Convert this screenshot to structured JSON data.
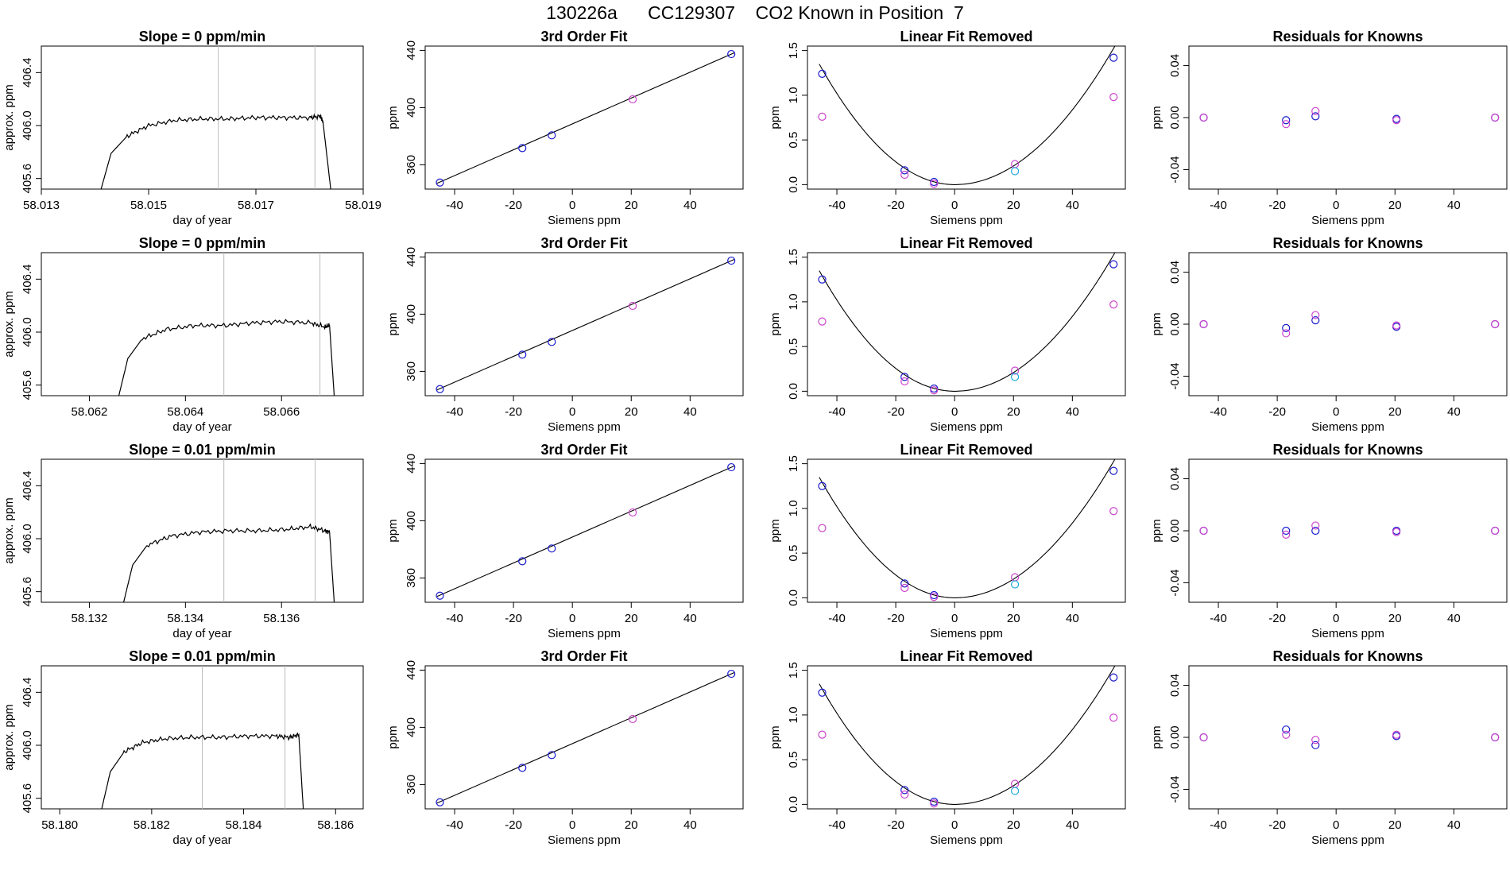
{
  "page_title": "130226a      CC129307    CO2 Known in Position  7",
  "chart_data": [
    {
      "row": 1,
      "type": "line",
      "title": "Slope =  0  ppm/min",
      "xlabel": "day of year",
      "ylabel": "approx. ppm",
      "xlim": [
        58.013,
        58.019
      ],
      "ylim": [
        405.52,
        406.6
      ],
      "xticks": [
        "58.013",
        "58.015",
        "58.017",
        "58.019"
      ],
      "yticks": [
        "405.6",
        "406.0",
        "406.4"
      ],
      "vlines": [
        58.0163,
        58.0181
      ],
      "series": [
        {
          "x": [
            58.0141,
            58.0143,
            58.0146,
            58.015,
            58.0155,
            58.016,
            58.0165,
            58.017,
            58.0175,
            58.018,
            58.0182,
            58.01825,
            58.0184
          ],
          "y": [
            405.5,
            405.79,
            405.92,
            406.0,
            406.04,
            406.05,
            406.05,
            406.06,
            406.06,
            406.06,
            406.07,
            406.03,
            405.5
          ]
        }
      ]
    },
    {
      "row": 1,
      "type": "scatter",
      "title": "3rd Order Fit",
      "xlabel": "Siemens ppm",
      "ylabel": "ppm",
      "xlim": [
        -50,
        58
      ],
      "ylim": [
        343,
        443
      ],
      "xticks": [
        "-40",
        "-20",
        "0",
        "20",
        "40"
      ],
      "yticks": [
        "360",
        "400",
        "440"
      ],
      "points": [
        {
          "x": -45,
          "y": 347.6
        },
        {
          "x": -17,
          "y": 371.7
        },
        {
          "x": -7,
          "y": 380.6
        },
        {
          "x": 20.5,
          "y": 405.8
        },
        {
          "x": 54,
          "y": 437.4
        }
      ],
      "fit_curve": {
        "x": [
          -46,
          55
        ],
        "y": [
          347,
          438.3
        ]
      }
    },
    {
      "row": 1,
      "type": "scatter",
      "title": "Linear Fit Removed",
      "xlabel": "Siemens ppm",
      "ylabel": "ppm",
      "xlim": [
        -50,
        58
      ],
      "ylim": [
        -0.05,
        1.55
      ],
      "xticks": [
        "-40",
        "-20",
        "0",
        "20",
        "40"
      ],
      "yticks": [
        "0.0",
        "0.5",
        "1.0",
        "1.5"
      ],
      "series": [
        {
          "color": "#1a1acc",
          "x": [
            -45,
            -17,
            -7,
            54
          ],
          "y": [
            1.24,
            0.16,
            0.03,
            1.42
          ]
        },
        {
          "color": "#cc44cc",
          "x": [
            -45,
            -17,
            -7,
            20.5,
            54
          ],
          "y": [
            0.76,
            0.11,
            0.01,
            0.23,
            0.98
          ]
        },
        {
          "color": "#22aadd",
          "x": [
            20.5
          ],
          "y": [
            0.15
          ]
        }
      ],
      "fit_curve": {
        "x": [
          -46,
          -40,
          -30,
          -20,
          -10,
          0,
          10,
          20,
          30,
          40,
          50,
          55
        ],
        "y": [
          1.33,
          1.02,
          0.57,
          0.25,
          0.06,
          0,
          0.06,
          0.25,
          0.57,
          1.02,
          1.58,
          1.5
        ]
      }
    },
    {
      "row": 1,
      "type": "scatter",
      "title": "Residuals for Knowns",
      "xlabel": "Siemens ppm",
      "ylabel": "ppm",
      "xlim": [
        -50,
        58
      ],
      "ylim": [
        -0.055,
        0.055
      ],
      "xticks": [
        "-40",
        "-20",
        "0",
        "20",
        "40"
      ],
      "yticks": [
        "-0.04",
        "0.00",
        "0.04"
      ],
      "series": [
        {
          "color": "#1a1acc",
          "x": [
            -45,
            -17,
            -7,
            20.5,
            54
          ],
          "y": [
            0.0,
            -0.002,
            0.001,
            -0.001,
            0.0
          ]
        },
        {
          "color": "#cc44cc",
          "x": [
            -45,
            -17,
            -7,
            20.5,
            54
          ],
          "y": [
            0.0,
            -0.005,
            0.005,
            -0.002,
            0.0
          ]
        }
      ]
    },
    {
      "row": 2,
      "type": "line",
      "title": "Slope =  0  ppm/min",
      "xlabel": "day of year",
      "ylabel": "approx. ppm",
      "xlim": [
        58.061,
        58.0677
      ],
      "ylim": [
        405.52,
        406.6
      ],
      "xticks": [
        "58.062",
        "58.064",
        "58.066"
      ],
      "yticks": [
        "405.6",
        "406.0",
        "406.4"
      ],
      "vlines": [
        58.0648,
        58.0668
      ],
      "series": [
        {
          "x": [
            58.0626,
            58.0628,
            58.0631,
            58.0636,
            58.0642,
            58.0648,
            58.0654,
            58.066,
            58.0666,
            58.0669,
            58.067,
            58.0671
          ],
          "y": [
            405.5,
            405.8,
            405.95,
            406.02,
            406.05,
            406.05,
            406.07,
            406.08,
            406.07,
            406.04,
            406.05,
            405.5
          ]
        }
      ]
    },
    {
      "row": 2,
      "type": "scatter",
      "title": "3rd Order Fit",
      "xlabel": "Siemens ppm",
      "ylabel": "ppm",
      "xlim": [
        -50,
        58
      ],
      "ylim": [
        343,
        443
      ],
      "xticks": [
        "-40",
        "-20",
        "0",
        "20",
        "40"
      ],
      "yticks": [
        "360",
        "400",
        "440"
      ],
      "points": [
        {
          "x": -45,
          "y": 347.6
        },
        {
          "x": -17,
          "y": 371.7
        },
        {
          "x": -7,
          "y": 380.6
        },
        {
          "x": 20.5,
          "y": 405.8
        },
        {
          "x": 54,
          "y": 437.4
        }
      ],
      "fit_curve": {
        "x": [
          -46,
          55
        ],
        "y": [
          347,
          438.3
        ]
      }
    },
    {
      "row": 2,
      "type": "scatter",
      "title": "Linear Fit Removed",
      "xlabel": "Siemens ppm",
      "ylabel": "ppm",
      "xlim": [
        -50,
        58
      ],
      "ylim": [
        -0.05,
        1.55
      ],
      "xticks": [
        "-40",
        "-20",
        "0",
        "20",
        "40"
      ],
      "yticks": [
        "0.0",
        "0.5",
        "1.0",
        "1.5"
      ],
      "series": [
        {
          "color": "#1a1acc",
          "x": [
            -45,
            -17,
            -7,
            54
          ],
          "y": [
            1.25,
            0.16,
            0.03,
            1.42
          ]
        },
        {
          "color": "#cc44cc",
          "x": [
            -45,
            -17,
            -7,
            20.5,
            54
          ],
          "y": [
            0.78,
            0.11,
            0.01,
            0.23,
            0.97
          ]
        },
        {
          "color": "#22aadd",
          "x": [
            20.5
          ],
          "y": [
            0.16
          ]
        }
      ],
      "fit_curve": {
        "x": [
          -46,
          -40,
          -30,
          -20,
          -10,
          0,
          10,
          20,
          30,
          40,
          50,
          55
        ],
        "y": [
          1.33,
          1.02,
          0.57,
          0.25,
          0.06,
          0,
          0.06,
          0.25,
          0.57,
          1.02,
          1.58,
          1.5
        ]
      }
    },
    {
      "row": 2,
      "type": "scatter",
      "title": "Residuals for Knowns",
      "xlabel": "Siemens ppm",
      "ylabel": "ppm",
      "xlim": [
        -50,
        58
      ],
      "ylim": [
        -0.055,
        0.055
      ],
      "xticks": [
        "-40",
        "-20",
        "0",
        "20",
        "40"
      ],
      "yticks": [
        "-0.04",
        "0.00",
        "0.04"
      ],
      "series": [
        {
          "color": "#1a1acc",
          "x": [
            -45,
            -17,
            -7,
            20.5,
            54
          ],
          "y": [
            0.0,
            -0.003,
            0.003,
            -0.002,
            0.0
          ]
        },
        {
          "color": "#cc44cc",
          "x": [
            -45,
            -17,
            -7,
            20.5,
            54
          ],
          "y": [
            0.0,
            -0.007,
            0.007,
            -0.001,
            0.0
          ]
        }
      ]
    },
    {
      "row": 3,
      "type": "line",
      "title": "Slope =  0.01  ppm/min",
      "xlabel": "day of year",
      "ylabel": "approx. ppm",
      "xlim": [
        58.131,
        58.1377
      ],
      "ylim": [
        405.52,
        406.6
      ],
      "xticks": [
        "58.132",
        "58.134",
        "58.136"
      ],
      "yticks": [
        "405.6",
        "406.0",
        "406.4"
      ],
      "vlines": [
        58.1348,
        58.1367
      ],
      "series": [
        {
          "x": [
            58.1327,
            58.1329,
            58.1332,
            58.1337,
            58.1343,
            58.1349,
            58.1355,
            58.1361,
            58.1366,
            58.1369,
            58.137,
            58.1371
          ],
          "y": [
            405.5,
            405.8,
            405.95,
            406.02,
            406.05,
            406.06,
            406.06,
            406.07,
            406.09,
            406.06,
            406.05,
            405.5
          ]
        }
      ]
    },
    {
      "row": 3,
      "type": "scatter",
      "title": "3rd Order Fit",
      "xlabel": "Siemens ppm",
      "ylabel": "ppm",
      "xlim": [
        -50,
        58
      ],
      "ylim": [
        343,
        443
      ],
      "xticks": [
        "-40",
        "-20",
        "0",
        "20",
        "40"
      ],
      "yticks": [
        "360",
        "400",
        "440"
      ],
      "points": [
        {
          "x": -45,
          "y": 347.6
        },
        {
          "x": -17,
          "y": 371.7
        },
        {
          "x": -7,
          "y": 380.6
        },
        {
          "x": 20.5,
          "y": 405.8
        },
        {
          "x": 54,
          "y": 437.4
        }
      ],
      "fit_curve": {
        "x": [
          -46,
          55
        ],
        "y": [
          347,
          438.3
        ]
      }
    },
    {
      "row": 3,
      "type": "scatter",
      "title": "Linear Fit Removed",
      "xlabel": "Siemens ppm",
      "ylabel": "ppm",
      "xlim": [
        -50,
        58
      ],
      "ylim": [
        -0.05,
        1.55
      ],
      "xticks": [
        "-40",
        "-20",
        "0",
        "20",
        "40"
      ],
      "yticks": [
        "0.0",
        "0.5",
        "1.0",
        "1.5"
      ],
      "series": [
        {
          "color": "#1a1acc",
          "x": [
            -45,
            -17,
            -7,
            54
          ],
          "y": [
            1.25,
            0.16,
            0.03,
            1.42
          ]
        },
        {
          "color": "#cc44cc",
          "x": [
            -45,
            -17,
            -7,
            20.5,
            54
          ],
          "y": [
            0.78,
            0.11,
            0.01,
            0.23,
            0.97
          ]
        },
        {
          "color": "#22aadd",
          "x": [
            20.5
          ],
          "y": [
            0.15
          ]
        }
      ],
      "fit_curve": {
        "x": [
          -46,
          -40,
          -30,
          -20,
          -10,
          0,
          10,
          20,
          30,
          40,
          50,
          55
        ],
        "y": [
          1.33,
          1.02,
          0.57,
          0.25,
          0.06,
          0,
          0.06,
          0.25,
          0.57,
          1.02,
          1.58,
          1.5
        ]
      }
    },
    {
      "row": 3,
      "type": "scatter",
      "title": "Residuals for Knowns",
      "xlabel": "Siemens ppm",
      "ylabel": "ppm",
      "xlim": [
        -50,
        58
      ],
      "ylim": [
        -0.055,
        0.055
      ],
      "xticks": [
        "-40",
        "-20",
        "0",
        "20",
        "40"
      ],
      "yticks": [
        "-0.04",
        "0.00",
        "0.04"
      ],
      "series": [
        {
          "color": "#1a1acc",
          "x": [
            -45,
            -17,
            -7,
            20.5,
            54
          ],
          "y": [
            0.0,
            0.0,
            0.0,
            0.0,
            0.0
          ]
        },
        {
          "color": "#cc44cc",
          "x": [
            -45,
            -17,
            -7,
            20.5,
            54
          ],
          "y": [
            0.0,
            -0.003,
            0.004,
            -0.001,
            0.0
          ]
        }
      ]
    },
    {
      "row": 4,
      "type": "line",
      "title": "Slope =  0.01  ppm/min",
      "xlabel": "day of year",
      "ylabel": "approx. ppm",
      "xlim": [
        58.1796,
        58.1866
      ],
      "ylim": [
        405.52,
        406.6
      ],
      "xticks": [
        "58.180",
        "58.182",
        "58.184",
        "58.186"
      ],
      "yticks": [
        "405.6",
        "406.0",
        "406.4"
      ],
      "vlines": [
        58.1831,
        58.1849
      ],
      "series": [
        {
          "x": [
            58.1809,
            58.1811,
            58.1814,
            58.1818,
            58.1823,
            58.1829,
            58.1835,
            58.1841,
            58.1847,
            58.185,
            58.1852,
            58.1853
          ],
          "y": [
            405.5,
            405.8,
            405.95,
            406.02,
            406.05,
            406.06,
            406.06,
            406.07,
            406.07,
            406.06,
            406.08,
            405.5
          ]
        }
      ]
    },
    {
      "row": 4,
      "type": "scatter",
      "title": "3rd Order Fit",
      "xlabel": "Siemens ppm",
      "ylabel": "ppm",
      "xlim": [
        -50,
        58
      ],
      "ylim": [
        343,
        443
      ],
      "xticks": [
        "-40",
        "-20",
        "0",
        "20",
        "40"
      ],
      "yticks": [
        "360",
        "400",
        "440"
      ],
      "points": [
        {
          "x": -45,
          "y": 347.6
        },
        {
          "x": -17,
          "y": 371.7
        },
        {
          "x": -7,
          "y": 380.6
        },
        {
          "x": 20.5,
          "y": 405.8
        },
        {
          "x": 54,
          "y": 437.4
        }
      ],
      "fit_curve": {
        "x": [
          -46,
          55
        ],
        "y": [
          347,
          438.3
        ]
      }
    },
    {
      "row": 4,
      "type": "scatter",
      "title": "Linear Fit Removed",
      "xlabel": "Siemens ppm",
      "ylabel": "ppm",
      "xlim": [
        -50,
        58
      ],
      "ylim": [
        -0.05,
        1.55
      ],
      "xticks": [
        "-40",
        "-20",
        "0",
        "20",
        "40"
      ],
      "yticks": [
        "0.0",
        "0.5",
        "1.0",
        "1.5"
      ],
      "series": [
        {
          "color": "#1a1acc",
          "x": [
            -45,
            -17,
            -7,
            54
          ],
          "y": [
            1.25,
            0.16,
            0.03,
            1.42
          ]
        },
        {
          "color": "#cc44cc",
          "x": [
            -45,
            -17,
            -7,
            20.5,
            54
          ],
          "y": [
            0.78,
            0.11,
            0.01,
            0.23,
            0.97
          ]
        },
        {
          "color": "#22aadd",
          "x": [
            20.5
          ],
          "y": [
            0.15
          ]
        }
      ],
      "fit_curve": {
        "x": [
          -46,
          -40,
          -30,
          -20,
          -10,
          0,
          10,
          20,
          30,
          40,
          50,
          55
        ],
        "y": [
          1.33,
          1.02,
          0.57,
          0.25,
          0.06,
          0,
          0.06,
          0.25,
          0.57,
          1.02,
          1.58,
          1.5
        ]
      }
    },
    {
      "row": 4,
      "type": "scatter",
      "title": "Residuals for Knowns",
      "xlabel": "Siemens ppm",
      "ylabel": "ppm",
      "xlim": [
        -50,
        58
      ],
      "ylim": [
        -0.055,
        0.055
      ],
      "xticks": [
        "-40",
        "-20",
        "0",
        "20",
        "40"
      ],
      "yticks": [
        "-0.04",
        "0.00",
        "0.04"
      ],
      "series": [
        {
          "color": "#1a1acc",
          "x": [
            -45,
            -17,
            -7,
            20.5,
            54
          ],
          "y": [
            0.0,
            0.006,
            -0.006,
            0.001,
            0.0
          ]
        },
        {
          "color": "#cc44cc",
          "x": [
            -45,
            -17,
            -7,
            20.5,
            54
          ],
          "y": [
            0.0,
            0.002,
            -0.002,
            0.002,
            0.0
          ]
        }
      ]
    }
  ]
}
